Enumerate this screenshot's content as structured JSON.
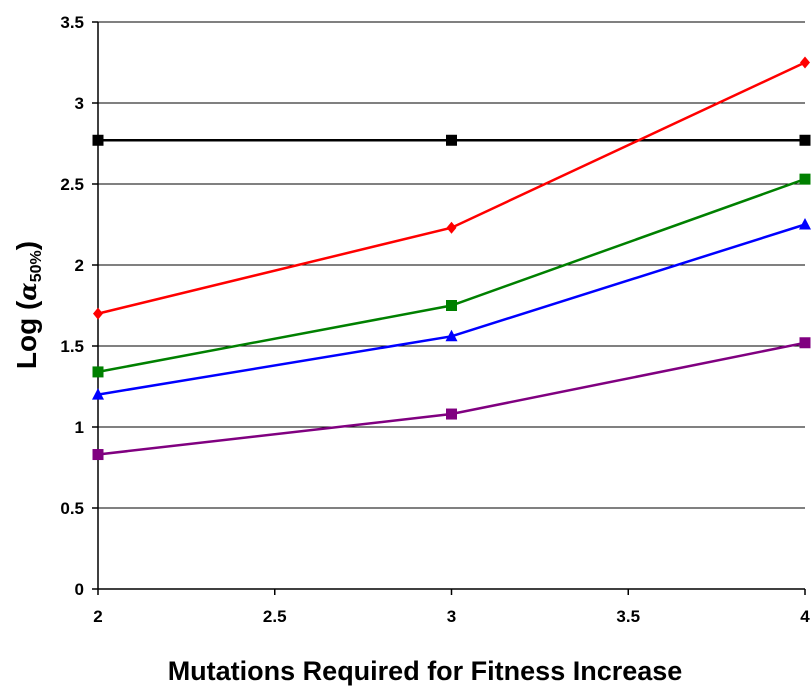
{
  "chart_data": {
    "type": "line",
    "title": "",
    "xlabel": "Mutations Required for Fitness Increase",
    "ylabel": {
      "prefix": "Log (",
      "symbol": "α",
      "subscript": "50%",
      "suffix": ")"
    },
    "xlim": [
      2,
      4
    ],
    "ylim": [
      0,
      3.5
    ],
    "x_ticks": [
      "2",
      "2.5",
      "3",
      "3.5",
      "4"
    ],
    "y_ticks": [
      "0",
      "0.5",
      "1",
      "1.5",
      "2",
      "2.5",
      "3",
      "3.5"
    ],
    "grid": "horizontal",
    "legend": "none",
    "x": [
      2,
      3,
      4
    ],
    "series": [
      {
        "color": "#000000",
        "marker": "square",
        "values": [
          2.77,
          2.77,
          2.77
        ]
      },
      {
        "color": "#ff0000",
        "marker": "diamond",
        "values": [
          1.7,
          2.23,
          3.25
        ]
      },
      {
        "color": "#008000",
        "marker": "square",
        "values": [
          1.34,
          1.75,
          2.53
        ]
      },
      {
        "color": "#0000ff",
        "marker": "triangle",
        "values": [
          1.2,
          1.56,
          2.25
        ]
      },
      {
        "color": "#800080",
        "marker": "square",
        "values": [
          0.83,
          1.08,
          1.52
        ]
      }
    ]
  }
}
